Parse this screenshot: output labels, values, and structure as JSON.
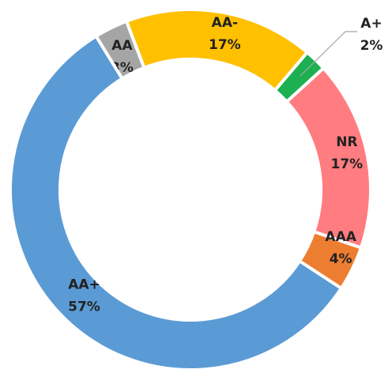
{
  "chart_data": {
    "type": "donut",
    "categories": [
      "AA",
      "AA-",
      "A+",
      "NR",
      "AAA",
      "AA+"
    ],
    "values": [
      3,
      17,
      2,
      17,
      4,
      57
    ],
    "value_labels": [
      "3%",
      "17%",
      "2%",
      "17%",
      "4%",
      "57%"
    ],
    "colors": [
      "#a5a5a5",
      "#ffc000",
      "#1db050",
      "#ff7c80",
      "#ed7d31",
      "#5b9bd5"
    ]
  }
}
